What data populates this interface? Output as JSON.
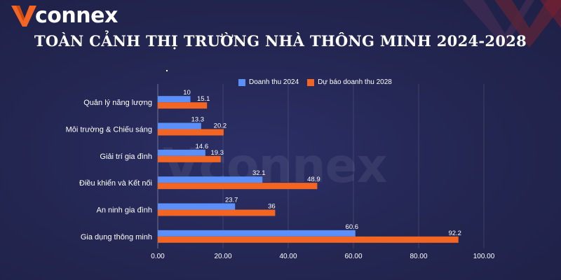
{
  "brand": {
    "name_prefix": "connex",
    "name_suffix": "",
    "accent_orange": "#f26522",
    "accent_blue": "#2f7bf0"
  },
  "watermark_text": "Vconnex",
  "chart_data": {
    "type": "bar",
    "orientation": "horizontal",
    "title": "TOÀN CẢNH THỊ TRƯỜNG NHÀ THÔNG MINH 2024-2028",
    "categories": [
      "Quản lý năng lượng",
      "Môi trường & Chiếu sáng",
      "Giải trí gia đình",
      "Điều khiển và Kết nối",
      "An ninh gia đình",
      "Gia dụng thông minh"
    ],
    "series": [
      {
        "name": "Doanh thu 2024",
        "color": "#5b8ff9",
        "values": [
          10,
          13.3,
          14.6,
          32.1,
          23.7,
          60.6
        ],
        "value_labels": [
          "10",
          "13.3",
          "14.6",
          "32.1",
          "23.7",
          "60.6"
        ]
      },
      {
        "name": "Dự báo doanh thu 2028",
        "color": "#f26522",
        "values": [
          15.1,
          20.2,
          19.3,
          48.9,
          36,
          92.2
        ],
        "value_labels": [
          "15.1",
          "20.2",
          "19.3",
          "48.9",
          "36",
          "92.2"
        ]
      }
    ],
    "xlim": [
      0,
      100
    ],
    "xticks": [
      "0.00",
      "20.00",
      "40.00",
      "60.00",
      "80.00",
      "100.00"
    ],
    "grid": true,
    "legend": "top"
  }
}
